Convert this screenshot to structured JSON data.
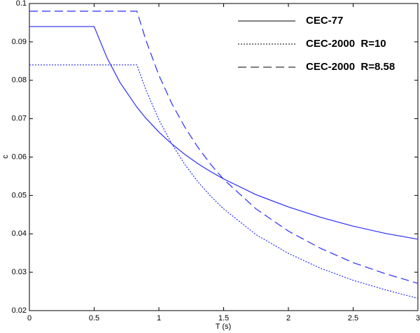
{
  "chart_data": {
    "type": "line",
    "x_label": "T (s)",
    "y_label": "c",
    "x": [
      0,
      0.5,
      0.6,
      0.7,
      0.83,
      0.9,
      1,
      1.1,
      1.2,
      1.3,
      1.4,
      1.5,
      1.75,
      2,
      2.25,
      2.5,
      2.75,
      3
    ],
    "series": [
      {
        "name": "CEC-77",
        "color": "#2a2aff",
        "linestyle": "solid",
        "values": [
          0.094,
          0.094,
          0.0858,
          0.0794,
          0.073,
          0.0701,
          0.0665,
          0.0634,
          0.0607,
          0.0583,
          0.0562,
          0.0543,
          0.0502,
          0.047,
          0.0443,
          0.042,
          0.0401,
          0.0386
        ]
      },
      {
        "name": "CEC-2000  R=10",
        "color": "#2a2aff",
        "linestyle": "dotted",
        "values": [
          0.084,
          0.084,
          0.084,
          0.084,
          0.084,
          0.0775,
          0.0697,
          0.0634,
          0.0581,
          0.0536,
          0.0498,
          0.0465,
          0.0398,
          0.0349,
          0.031,
          0.0279,
          0.0254,
          0.0232
        ]
      },
      {
        "name": "CEC-2000  R=8.58",
        "color": "#2a2aff",
        "linestyle": "dashed",
        "values": [
          0.098,
          0.098,
          0.098,
          0.098,
          0.098,
          0.0904,
          0.0813,
          0.0739,
          0.0678,
          0.0626,
          0.0581,
          0.0542,
          0.0465,
          0.0407,
          0.0362,
          0.0325,
          0.0296,
          0.0271
        ]
      }
    ],
    "xlim": [
      0,
      3
    ],
    "xticks": [
      0,
      0.5,
      1,
      1.5,
      2,
      2.5,
      3
    ],
    "ylim": [
      0.02,
      0.1
    ],
    "yticks": [
      0.02,
      0.03,
      0.04,
      0.05,
      0.06,
      0.07,
      0.08,
      0.09,
      0.1
    ],
    "grid": false,
    "legend": "upper right"
  }
}
